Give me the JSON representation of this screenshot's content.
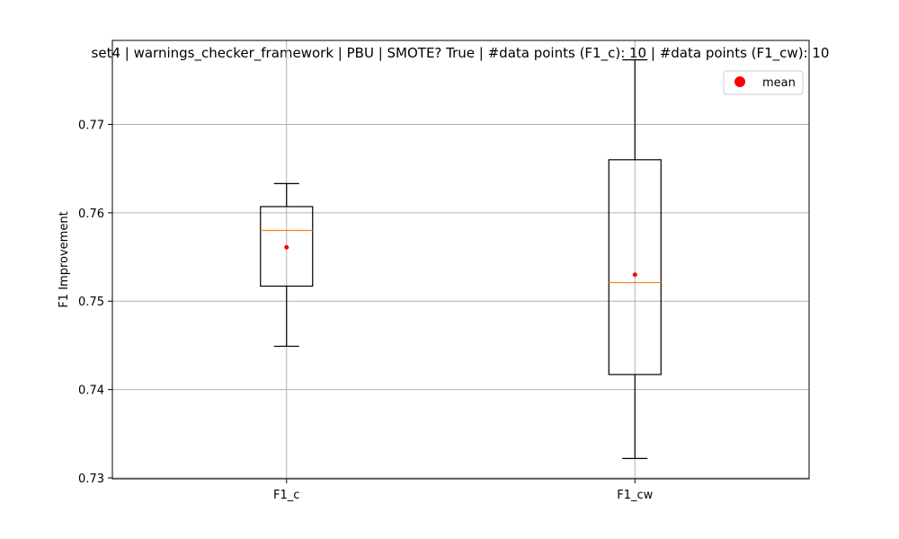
{
  "chart_data": {
    "type": "boxplot",
    "title": "set4 | warnings_checker_framework | PBU | SMOTE? True | #data points (F1_c): 10 | #data points (F1_cw): 10",
    "xlabel": "",
    "ylabel": "F1 Improvement",
    "ylim": [
      0.7299,
      0.7795
    ],
    "yticks": [
      "0.73",
      "0.74",
      "0.75",
      "0.76",
      "0.77"
    ],
    "ytick_values": [
      0.73,
      0.74,
      0.75,
      0.76,
      0.77
    ],
    "grid": true,
    "legend": {
      "position": "top-right",
      "entries": [
        {
          "label": "mean",
          "color": "#ff0000",
          "marker": "circle"
        }
      ]
    },
    "series": [
      {
        "name": "F1_c",
        "whisker_low": 0.7449,
        "q1": 0.7517,
        "median": 0.758,
        "q3": 0.7607,
        "whisker_high": 0.7633,
        "mean": 0.7561
      },
      {
        "name": "F1_cw",
        "whisker_low": 0.7322,
        "q1": 0.7417,
        "median": 0.7521,
        "q3": 0.766,
        "whisker_high": 0.7773,
        "mean": 0.753
      }
    ],
    "colors": {
      "box": "#000000",
      "median": "#ff7f0e",
      "mean": "#ff0000",
      "grid": "#b0b0b0"
    }
  }
}
